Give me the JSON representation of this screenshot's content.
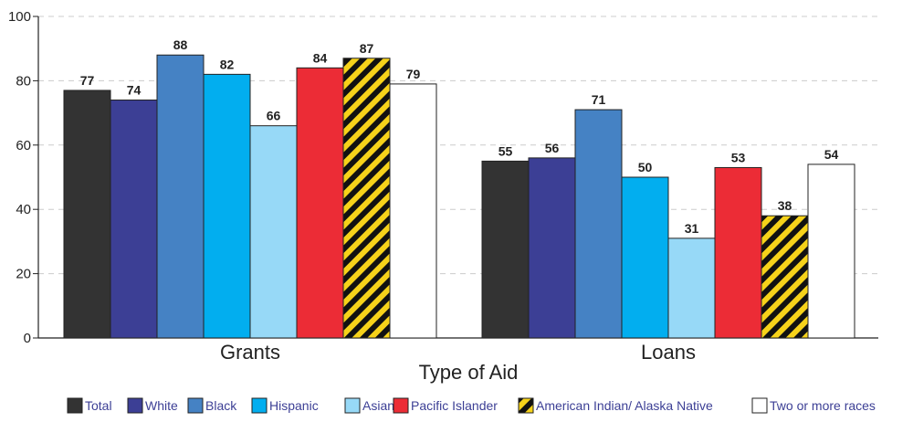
{
  "chart_data": {
    "type": "bar",
    "title": "",
    "xlabel": "Type of Aid",
    "ylabel": "",
    "ylim": [
      0,
      100
    ],
    "yticks": [
      0,
      20,
      40,
      60,
      80,
      100
    ],
    "grid": true,
    "legend_position": "bottom",
    "categories": [
      "Grants",
      "Loans"
    ],
    "series": [
      {
        "name": "Total",
        "values": [
          77,
          55
        ],
        "color": "#333333"
      },
      {
        "name": "White",
        "values": [
          74,
          56
        ],
        "color": "#3c3f95"
      },
      {
        "name": "Black",
        "values": [
          88,
          71
        ],
        "color": "#4582c4"
      },
      {
        "name": "Hispanic",
        "values": [
          82,
          50
        ],
        "color": "#02aeef"
      },
      {
        "name": "Asian",
        "values": [
          66,
          31
        ],
        "color": "#97d9f7"
      },
      {
        "name": "Pacific Islander",
        "values": [
          84,
          53
        ],
        "color": "#ec2c36"
      },
      {
        "name": "American Indian/ Alaska Native",
        "values": [
          87,
          38
        ],
        "color": "#f6d21a",
        "pattern": "yellow-black-stripes"
      },
      {
        "name": "Two or more races",
        "values": [
          79,
          54
        ],
        "color": "#ffffff"
      }
    ],
    "legend_text_color": "#3c3f95"
  }
}
